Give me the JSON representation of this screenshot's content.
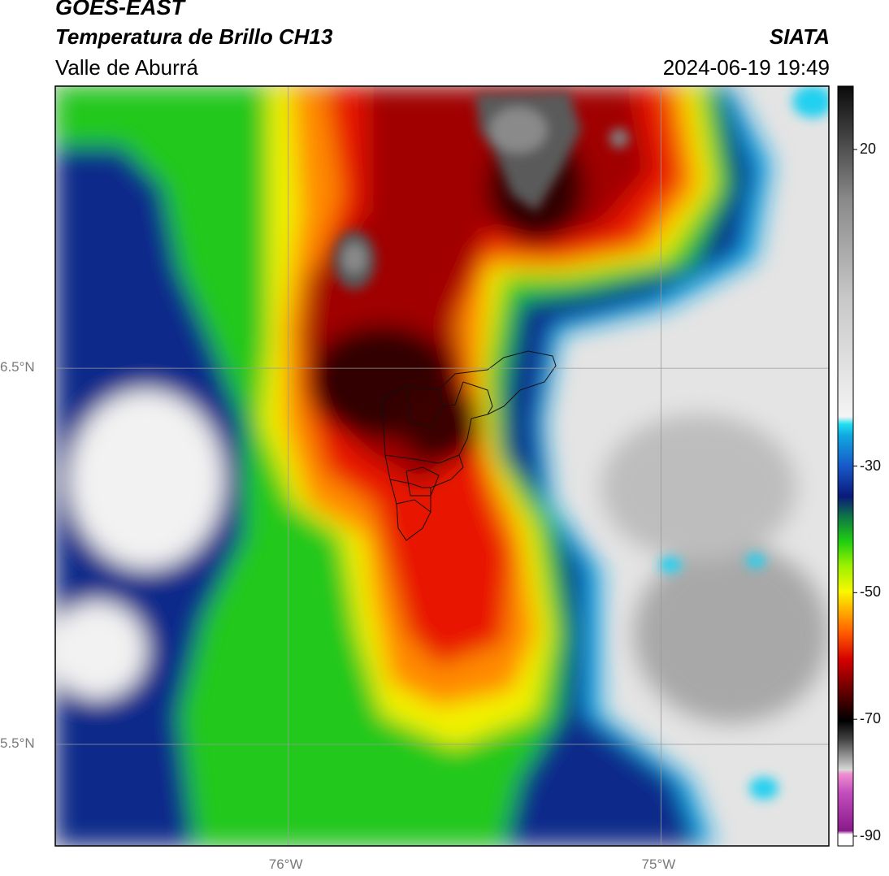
{
  "header": {
    "satellite": "GOES-EAST",
    "product": "Temperatura de Brillo CH13",
    "region": "Valle de Aburrá",
    "org": "SIATA",
    "datetime": "2024-06-19 19:49"
  },
  "map": {
    "lat_gridlines": [
      {
        "value": 6.5,
        "label": "6.5°N"
      },
      {
        "value": 5.5,
        "label": "5.5°N"
      }
    ],
    "lon_gridlines": [
      {
        "value": -76.0,
        "label": "76°W"
      },
      {
        "value": -75.0,
        "label": "75°W"
      }
    ],
    "lon_range": [
      -76.625,
      -74.55
    ],
    "lat_range": [
      5.23,
      7.25
    ]
  },
  "colorbar": {
    "range": [
      -90,
      30
    ],
    "ticks": [
      {
        "value": 20,
        "label": "20"
      },
      {
        "value": -30,
        "label": "-30"
      },
      {
        "value": -50,
        "label": "-50"
      },
      {
        "value": -70,
        "label": "-70"
      },
      {
        "value": -90,
        "label": "-90"
      }
    ],
    "colors": {
      "cold_cloud": "#4a0000",
      "overshoot": "#606060",
      "warm_clear": "#e6e6e6",
      "deep_blue": "#0a2a8a",
      "cyan": "#19d5ef",
      "green": "#2dd31e",
      "yellow": "#f4f400",
      "red": "#e81a00"
    }
  }
}
